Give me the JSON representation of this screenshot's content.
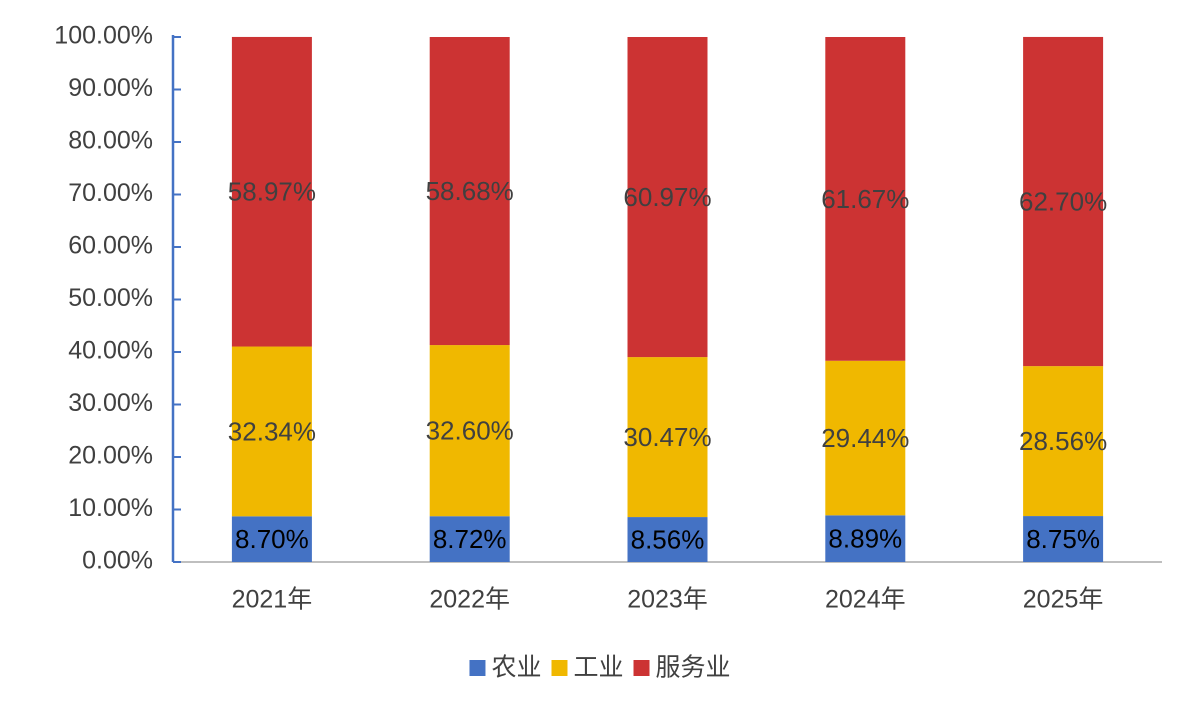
{
  "chart_data": {
    "type": "stacked_bar",
    "categories": [
      "2021年",
      "2022年",
      "2023年",
      "2024年",
      "2025年"
    ],
    "series": [
      {
        "name": "农业",
        "color": "#4472c4",
        "values": [
          8.7,
          8.72,
          8.56,
          8.89,
          8.75
        ],
        "value_labels": [
          "8.70%",
          "8.72%",
          "8.56%",
          "8.89%",
          "8.75%"
        ]
      },
      {
        "name": "工业",
        "color": "#f0b800",
        "values": [
          32.34,
          32.6,
          30.47,
          29.44,
          28.56
        ],
        "value_labels": [
          "32.34%",
          "32.60%",
          "30.47%",
          "29.44%",
          "28.56%"
        ]
      },
      {
        "name": "服务业",
        "color": "#cc3333",
        "values": [
          58.97,
          58.68,
          60.97,
          61.67,
          62.7
        ],
        "value_labels": [
          "58.97%",
          "58.68%",
          "60.97%",
          "61.67%",
          "62.70%"
        ]
      }
    ],
    "ylim": [
      0,
      100
    ],
    "yticks": [
      {
        "value": 0,
        "label": "0.00%"
      },
      {
        "value": 10,
        "label": "10.00%"
      },
      {
        "value": 20,
        "label": "20.00%"
      },
      {
        "value": 30,
        "label": "30.00%"
      },
      {
        "value": 40,
        "label": "40.00%"
      },
      {
        "value": 50,
        "label": "50.00%"
      },
      {
        "value": 60,
        "label": "60.00%"
      },
      {
        "value": 70,
        "label": "70.00%"
      },
      {
        "value": 80,
        "label": "80.00%"
      },
      {
        "value": 90,
        "label": "90.00%"
      },
      {
        "value": 100,
        "label": "100.00%"
      }
    ],
    "legend": "bottom"
  }
}
